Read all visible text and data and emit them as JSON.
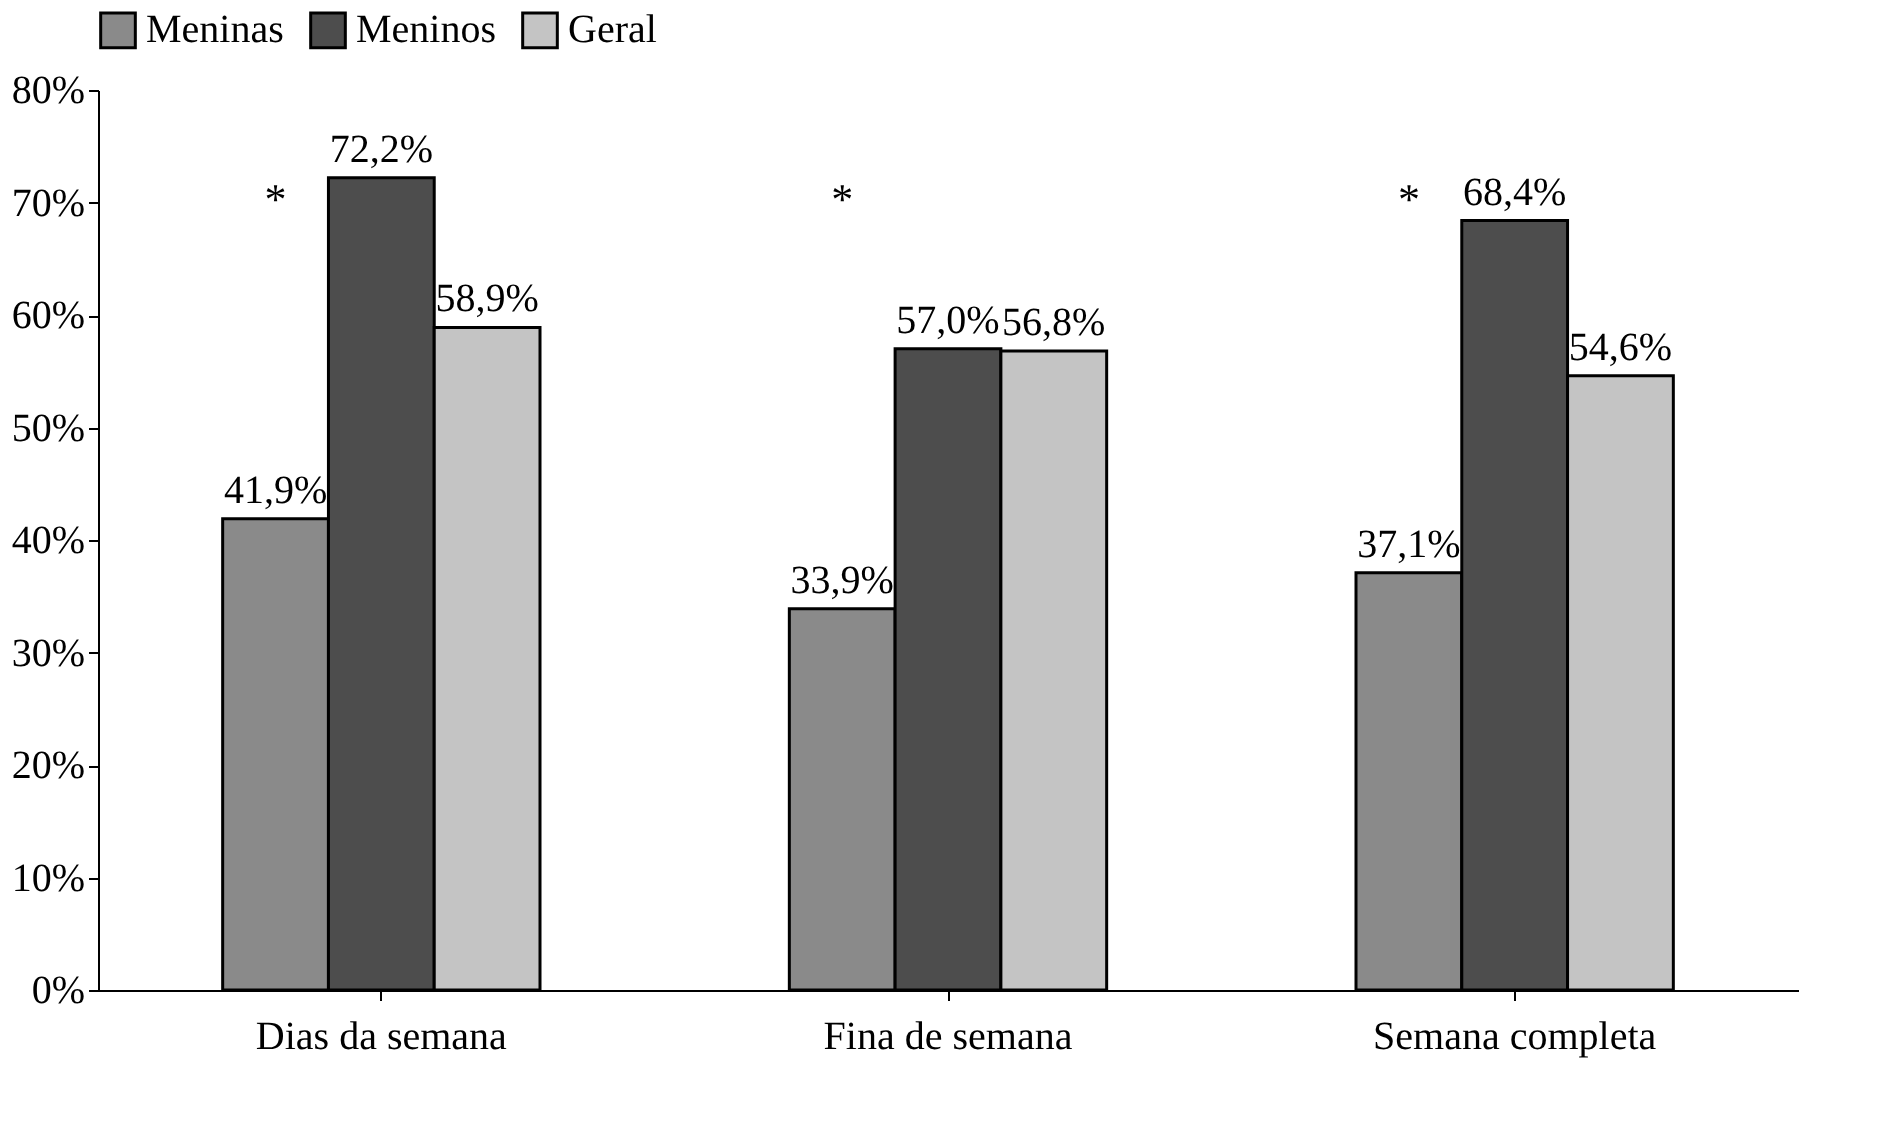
{
  "chart_data": {
    "type": "bar",
    "categories": [
      "Dias da semana",
      "Fina de semana",
      "Semana completa"
    ],
    "series": [
      {
        "name": "Meninas",
        "color": "#8a8a8a",
        "values": [
          41.9,
          33.9,
          37.1
        ],
        "value_labels": [
          "41,9%",
          "33,9%",
          "37,1%"
        ]
      },
      {
        "name": "Meninos",
        "color": "#4d4d4d",
        "values": [
          72.2,
          57.0,
          68.4
        ],
        "value_labels": [
          "72,2%",
          "57,0%",
          "68,4%"
        ]
      },
      {
        "name": "Geral",
        "color": "#c4c4c4",
        "values": [
          58.9,
          56.8,
          54.6
        ],
        "value_labels": [
          "58,9%",
          "56,8%",
          "54,6%"
        ]
      }
    ],
    "ylim": [
      0,
      80
    ],
    "yticks": [
      {
        "value": 0,
        "label": "0%"
      },
      {
        "value": 10,
        "label": "10%"
      },
      {
        "value": 20,
        "label": "20%"
      },
      {
        "value": 30,
        "label": "30%"
      },
      {
        "value": 40,
        "label": "40%"
      },
      {
        "value": 50,
        "label": "50%"
      },
      {
        "value": 60,
        "label": "60%"
      },
      {
        "value": 70,
        "label": "70%"
      },
      {
        "value": 80,
        "label": "80%"
      }
    ],
    "annotations": [
      "*",
      "*",
      "*"
    ],
    "legend": "top",
    "grid": false
  }
}
